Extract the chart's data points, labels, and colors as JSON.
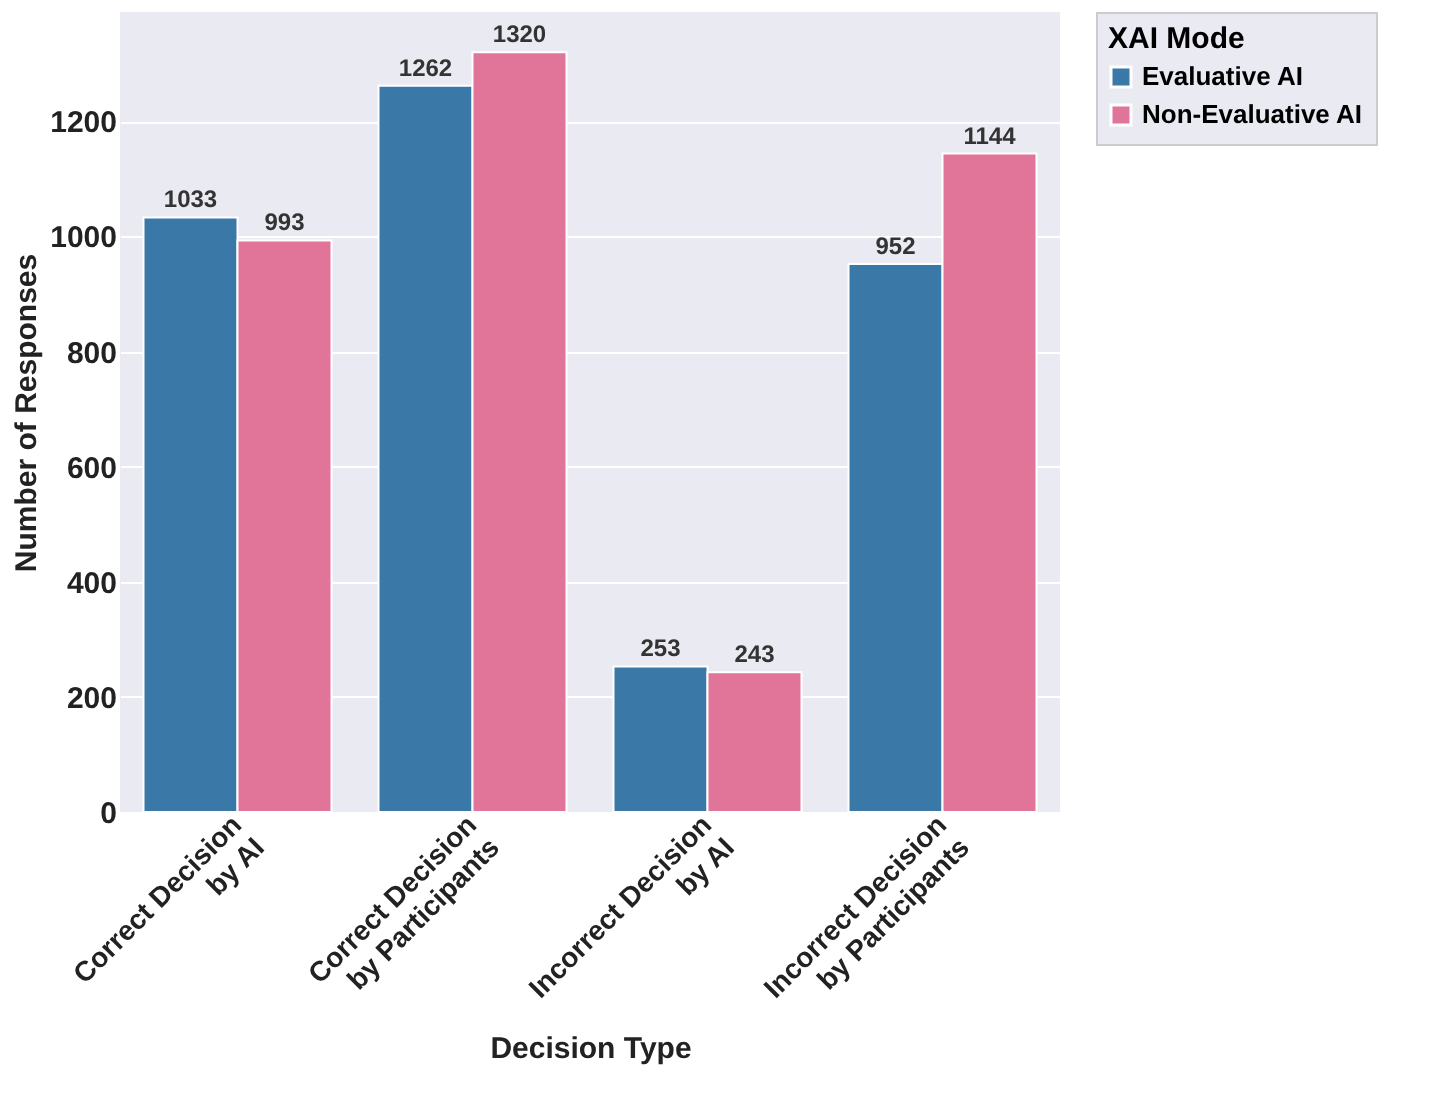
{
  "chart_data": {
    "type": "bar",
    "xlabel": "Decision Type",
    "ylabel": "Number of Responses",
    "legend_title": "XAI Mode",
    "categories": [
      "Correct Decision by AI",
      "Correct Decision by Participants",
      "Incorrect Decision by AI",
      "Incorrect Decision by Participants"
    ],
    "series": [
      {
        "name": "Evaluative AI",
        "color": "#3a78a8",
        "values": [
          1033,
          1262,
          253,
          952
        ]
      },
      {
        "name": "Non-Evaluative AI",
        "color": "#e07599",
        "values": [
          993,
          1320,
          243,
          1144
        ]
      }
    ],
    "ylim": [
      0,
      1390
    ],
    "yticks": [
      0,
      200,
      400,
      600,
      800,
      1000,
      1200
    ],
    "grid": "y",
    "legend": "right",
    "data_labels": true
  }
}
